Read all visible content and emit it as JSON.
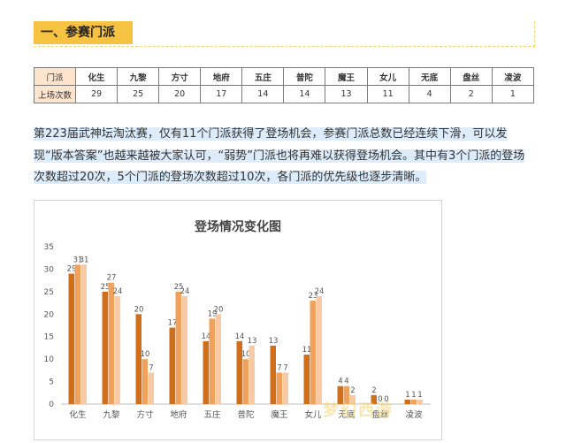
{
  "section": {
    "title": "一、参赛门派"
  },
  "table": {
    "header_label": "门派",
    "row_label": "上场次数",
    "sects": [
      "化生",
      "九黎",
      "方寸",
      "地府",
      "五庄",
      "普陀",
      "魔王",
      "女儿",
      "无底",
      "盘丝",
      "凌波"
    ],
    "counts": [
      "29",
      "25",
      "20",
      "17",
      "14",
      "14",
      "13",
      "11",
      "4",
      "2",
      "1"
    ]
  },
  "paragraph": "第223届武神坛淘汰赛，仅有11个门派获得了登场机会，参赛门派总数已经连续下滑，可以发现“版本答案”也越来越被大家认可，“弱势”门派也将再难以获得登场机会。其中有3个门派的登场次数超过20次，5个门派的登场次数超过10次，各门派的优先级也逐步清晰。",
  "colors": {
    "series": [
      "#cf6f1c",
      "#f0a25c",
      "#f7c9a4"
    ],
    "accent": "#f5c242"
  },
  "chart_data": {
    "type": "bar",
    "title": "登场情况变化图",
    "categories": [
      "化生",
      "九黎",
      "方寸",
      "地府",
      "五庄",
      "普陀",
      "魔王",
      "女儿",
      "无底",
      "盘丝",
      "凌波"
    ],
    "series": [
      {
        "values": [
          29,
          25,
          20,
          17,
          14,
          14,
          13,
          11,
          4,
          2,
          1
        ]
      },
      {
        "values": [
          31,
          27,
          10,
          25,
          19,
          10,
          7,
          23,
          4,
          0,
          1
        ]
      },
      {
        "values": [
          31,
          24,
          7,
          24,
          20,
          13,
          7,
          24,
          2,
          0,
          1
        ]
      }
    ],
    "ylim": [
      0,
      35
    ],
    "yticks": [
      0,
      5,
      10,
      15,
      20,
      25,
      30,
      35
    ],
    "grid": false,
    "legend": "none"
  }
}
